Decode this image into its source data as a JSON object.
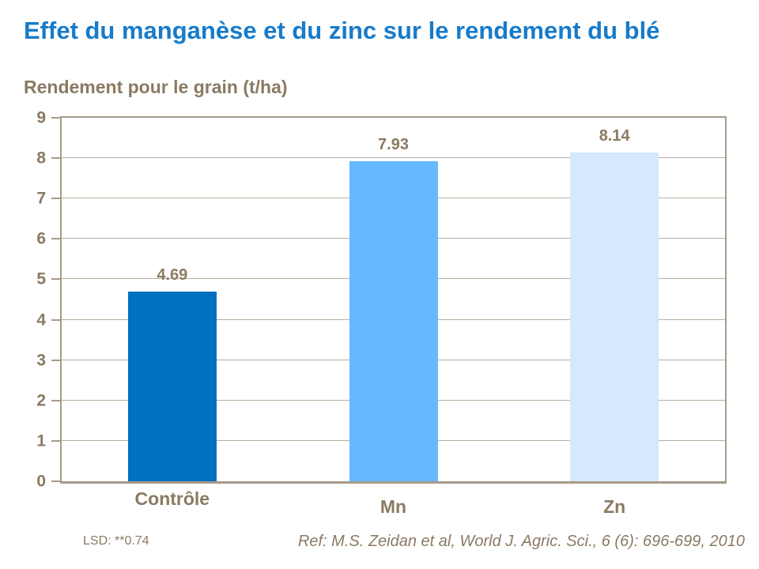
{
  "title": "Effet du manganèse et du zinc sur le rendement du blé",
  "subtitle": "Rendement pour le grain (t/ha)",
  "footnotes": {
    "lsd": "LSD: **0.74",
    "reference": "Ref: M.S. Zeidan et al, World J. Agric. Sci., 6 (6): 696-699, 2010"
  },
  "colors": {
    "title_text": "#177bc9",
    "body_text": "#8a7a62",
    "axis": "#a79b8b",
    "gridline": "#b9ae9f",
    "bar_controle": "#0070c0",
    "bar_mn": "#66b9ff",
    "bar_zn": "#d5e8fc"
  },
  "chart_data": {
    "type": "bar",
    "title": "Effet du manganèse et du zinc sur le rendement du blé",
    "ylabel": "Rendement pour le grain (t/ha)",
    "xlabel": "",
    "categories": [
      "Contrôle",
      "Mn",
      "Zn"
    ],
    "values": [
      4.69,
      7.93,
      8.14
    ],
    "value_labels": [
      "4.69",
      "7.93",
      "8.14"
    ],
    "bar_colors": [
      "#0070c0",
      "#66b9ff",
      "#d5e8fc"
    ],
    "ylim": [
      0,
      9
    ],
    "ytick_step": 1,
    "yticks": [
      0,
      1,
      2,
      3,
      4,
      5,
      6,
      7,
      8,
      9
    ],
    "grid": true,
    "legend": false,
    "annotations": [
      "LSD: **0.74",
      "Ref: M.S. Zeidan et al, World J. Agric. Sci., 6 (6): 696-699, 2010"
    ]
  }
}
